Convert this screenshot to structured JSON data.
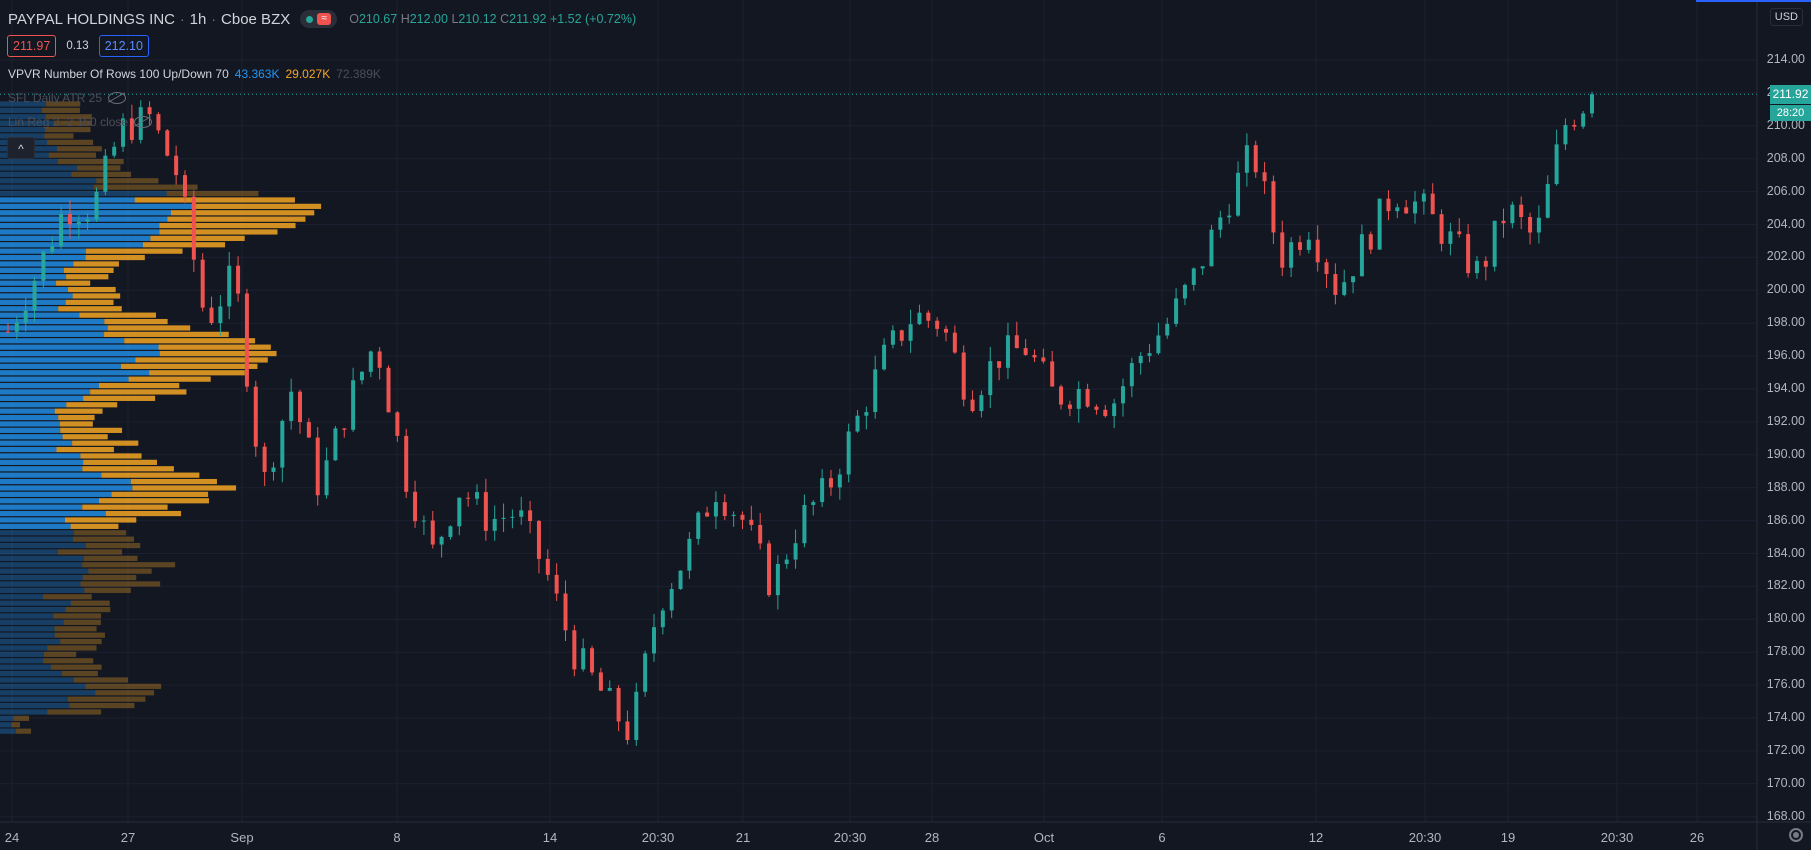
{
  "header": {
    "symbol": "PAYPAL HOLDINGS INC",
    "interval": "1h",
    "exchange": "Cboe BZX",
    "ohlc": {
      "o_label": "O",
      "o": "210.67",
      "h_label": "H",
      "h": "212.00",
      "l_label": "L",
      "l": "210.12",
      "c_label": "C",
      "c": "211.92",
      "change": "+1.52 (+0.72%)"
    }
  },
  "quote": {
    "sell": "211.97",
    "spread": "0.13",
    "buy": "212.10"
  },
  "indicators": [
    {
      "name": "VPVR Number Of Rows 100 Up/Down 70",
      "v1": "43.363K",
      "v2": "29.027K",
      "v3": "72.389K"
    },
    {
      "name": "SFL Daily ATR 25"
    },
    {
      "name": "Lin Reg 2 -2 150 close"
    }
  ],
  "axis": {
    "currency": "USD",
    "last_price": "211.92",
    "countdown": "28:20",
    "y_labels": [
      "214.00",
      "212.00",
      "210.00",
      "208.00",
      "206.00",
      "204.00",
      "202.00",
      "200.00",
      "198.00",
      "196.00",
      "194.00",
      "192.00",
      "190.00",
      "188.00",
      "186.00",
      "184.00",
      "182.00",
      "180.00",
      "178.00",
      "176.00",
      "174.00",
      "172.00",
      "170.00",
      "168.00"
    ],
    "x_labels": [
      "24",
      "27",
      "Sep",
      "8",
      "14",
      "20:30",
      "21",
      "20:30",
      "28",
      "Oct",
      "6",
      "12",
      "20:30",
      "19",
      "20:30",
      "26"
    ]
  },
  "colors": {
    "up": "#26a69a",
    "down": "#ef5350",
    "vp_up": "#2196f3",
    "vp_down": "#f5a623",
    "bg": "#131722"
  },
  "chart_data": {
    "type": "candlestick",
    "title": "PAYPAL HOLDINGS INC · 1h · Cboe BZX",
    "ylim": [
      167.5,
      215.5
    ],
    "y_unit": "USD",
    "x_ticks": [
      "24",
      "27",
      "Sep",
      "8",
      "14",
      "20:30",
      "21",
      "20:30",
      "28",
      "Oct",
      "6",
      "12",
      "20:30",
      "19",
      "20:30",
      "26"
    ],
    "close_path": [
      [
        "24",
        197.5
      ],
      [
        "27",
        201.0
      ],
      [
        "28",
        205.0
      ],
      [
        "Sep",
        205.0
      ],
      [
        "Sep",
        209.8
      ],
      [
        "Sep 2",
        210.5
      ],
      [
        "Sep 3",
        207.0
      ],
      [
        "Sep 4",
        198.0
      ],
      [
        "Sep 4",
        201.0
      ],
      [
        "8",
        188.0
      ],
      [
        "8",
        194.0
      ],
      [
        "9",
        188.0
      ],
      [
        "10",
        193.0
      ],
      [
        "11",
        197.0
      ],
      [
        "11",
        189.0
      ],
      [
        "14",
        184.0
      ],
      [
        "15",
        188.0
      ],
      [
        "16",
        186.0
      ],
      [
        "17",
        186.5
      ],
      [
        "18",
        183.0
      ],
      [
        "20:30",
        178.0
      ],
      [
        "21",
        175.5
      ],
      [
        "21",
        173.0
      ],
      [
        "22",
        181.0
      ],
      [
        "23",
        184.0
      ],
      [
        "24",
        188.0
      ],
      [
        "24",
        186.0
      ],
      [
        "25",
        182.0
      ],
      [
        "25",
        186.0
      ],
      [
        "28",
        188.0
      ],
      [
        "29",
        192.0
      ],
      [
        "30",
        196.0
      ],
      [
        "Oct",
        198.5
      ],
      [
        "Oct 1",
        198.0
      ],
      [
        "Oct 2",
        193.5
      ],
      [
        "Oct 5",
        196.0
      ],
      [
        "6",
        196.5
      ],
      [
        "7",
        193.5
      ],
      [
        "8",
        194.0
      ],
      [
        "9",
        193.0
      ],
      [
        "9",
        196.0
      ],
      [
        "12",
        198.0
      ],
      [
        "12",
        201.0
      ],
      [
        "13",
        205.0
      ],
      [
        "14",
        208.5
      ],
      [
        "14",
        202.0
      ],
      [
        "15",
        204.0
      ],
      [
        "20:30",
        200.0
      ],
      [
        "16",
        203.0
      ],
      [
        "16",
        206.0
      ],
      [
        "19",
        205.0
      ],
      [
        "19",
        203.0
      ],
      [
        "20",
        201.0
      ],
      [
        "20",
        205.0
      ],
      [
        "21",
        203.0
      ],
      [
        "22",
        210.0
      ],
      [
        "22",
        211.92
      ]
    ],
    "volume_profile": {
      "rows": 100,
      "up_down_split_pct": 70,
      "total_up": "43.363K",
      "total_down": "29.027K",
      "total": "72.389K"
    }
  }
}
